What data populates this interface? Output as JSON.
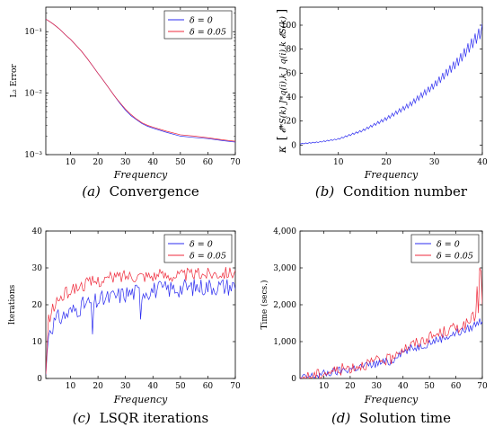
{
  "colors": {
    "delta0": "#2b2bf0",
    "delta005": "#ef2a3b"
  },
  "chart_data": [
    {
      "id": "a",
      "type": "line",
      "caption_letter": "(a)",
      "caption_text": "Convergence",
      "xlabel": "Frequency",
      "ylabel": "L₂ Error",
      "xlim": [
        1,
        70
      ],
      "ylim": [
        0.001,
        0.25
      ],
      "yscale": "log",
      "xticks": [
        10,
        20,
        30,
        40,
        50,
        60,
        70
      ],
      "yticks": [
        0.001,
        0.01,
        0.1
      ],
      "ytick_labels": [
        "10⁻³",
        "10⁻²",
        "10⁻¹"
      ],
      "grid": false,
      "legend": "top-right",
      "series": [
        {
          "name": "δ = 0",
          "x": [
            1,
            2,
            3,
            4,
            5,
            6,
            7,
            8,
            9,
            10,
            12,
            14,
            16,
            18,
            20,
            22,
            24,
            26,
            28,
            30,
            32,
            34,
            36,
            38,
            40,
            45,
            50,
            55,
            60,
            65,
            70
          ],
          "y": [
            0.16,
            0.15,
            0.14,
            0.13,
            0.12,
            0.11,
            0.1,
            0.09,
            0.082,
            0.075,
            0.06,
            0.048,
            0.037,
            0.028,
            0.021,
            0.016,
            0.012,
            0.009,
            0.0068,
            0.0053,
            0.0043,
            0.0037,
            0.0032,
            0.0029,
            0.0027,
            0.0023,
            0.002,
            0.0019,
            0.00182,
            0.0017,
            0.0016
          ]
        },
        {
          "name": "δ = 0.05",
          "x": [
            1,
            2,
            3,
            4,
            5,
            6,
            7,
            8,
            9,
            10,
            12,
            14,
            16,
            18,
            20,
            22,
            24,
            26,
            28,
            30,
            32,
            34,
            36,
            38,
            40,
            45,
            50,
            55,
            60,
            65,
            70
          ],
          "y": [
            0.16,
            0.15,
            0.14,
            0.13,
            0.12,
            0.11,
            0.1,
            0.09,
            0.082,
            0.075,
            0.06,
            0.048,
            0.037,
            0.028,
            0.021,
            0.016,
            0.012,
            0.009,
            0.007,
            0.0055,
            0.0045,
            0.0038,
            0.0033,
            0.003,
            0.0028,
            0.0024,
            0.0021,
            0.002,
            0.00188,
            0.00175,
            0.00165
          ]
        }
      ]
    },
    {
      "id": "b",
      "type": "line",
      "caption_letter": "(b)",
      "caption_text": "Condition number",
      "xlabel": "Frequency",
      "ylabel_main": "κ",
      "ylabel_inner": "𝓔*S(k) J*q(i),k J q(i),k 𝓔S(k)",
      "xlim": [
        2,
        40
      ],
      "ylim": [
        -8,
        115
      ],
      "xticks": [
        10,
        20,
        30,
        40
      ],
      "yticks": [
        0,
        20,
        40,
        60,
        80,
        100
      ],
      "grid": false,
      "legend": "none",
      "series": [
        {
          "x_start": 2,
          "x_end": 40,
          "step": 0.25,
          "base": [
            [
              2,
              1
            ],
            [
              6,
              2.5
            ],
            [
              10,
              5
            ],
            [
              15,
              12
            ],
            [
              20,
              22
            ],
            [
              25,
              34
            ],
            [
              30,
              50
            ],
            [
              35,
              70
            ],
            [
              40,
              96
            ]
          ],
          "oscillation": {
            "period": 0.75,
            "amplitude_fraction": 0.06
          }
        }
      ]
    },
    {
      "id": "c",
      "type": "line",
      "caption_letter": "(c)",
      "caption_text": "LSQR iterations",
      "xlabel": "Frequency",
      "ylabel": "Iterations",
      "xlim": [
        1,
        70
      ],
      "ylim": [
        0,
        40
      ],
      "xticks": [
        10,
        20,
        30,
        40,
        50,
        60,
        70
      ],
      "yticks": [
        0,
        10,
        20,
        30,
        40
      ],
      "grid": false,
      "legend": "top-right",
      "series": [
        {
          "name": "δ = 0",
          "x_start": 1,
          "x_end": 70,
          "step": 0.5,
          "base": [
            [
              1,
              1
            ],
            [
              2,
              13
            ],
            [
              5,
              16
            ],
            [
              10,
              18
            ],
            [
              15,
              20
            ],
            [
              20,
              21
            ],
            [
              30,
              23
            ],
            [
              40,
              24
            ],
            [
              50,
              24.5
            ],
            [
              60,
              25
            ],
            [
              70,
              25
            ]
          ],
          "noise": 2.5,
          "dips": [
            [
              18,
              12
            ],
            [
              35.5,
              16
            ]
          ]
        },
        {
          "name": "δ = 0.05",
          "x_start": 1,
          "x_end": 70,
          "step": 0.5,
          "base": [
            [
              1,
              1
            ],
            [
              2,
              16
            ],
            [
              5,
              21
            ],
            [
              10,
              24
            ],
            [
              15,
              25.5
            ],
            [
              20,
              26.5
            ],
            [
              30,
              28
            ],
            [
              40,
              28
            ],
            [
              50,
              28
            ],
            [
              60,
              28.5
            ],
            [
              70,
              29
            ]
          ],
          "noise": 1.8,
          "dips": []
        }
      ]
    },
    {
      "id": "d",
      "type": "line",
      "caption_letter": "(d)",
      "caption_text": "Solution time",
      "xlabel": "Frequency",
      "ylabel": "Time (secs.)",
      "xlim": [
        1,
        70
      ],
      "ylim": [
        0,
        4000
      ],
      "xticks": [
        10,
        20,
        30,
        40,
        50,
        60,
        70
      ],
      "yticks": [
        0,
        1000,
        2000,
        3000,
        4000
      ],
      "ytick_labels": [
        "0",
        "1,000",
        "2,000",
        "3,000",
        "4,000"
      ],
      "grid": false,
      "legend": "top-right",
      "series": [
        {
          "name": "δ = 0",
          "x_start": 1,
          "x_end": 70,
          "step": 0.5,
          "base": [
            [
              1,
              0
            ],
            [
              10,
              120
            ],
            [
              20,
              260
            ],
            [
              30,
              400
            ],
            [
              36.5,
              470
            ],
            [
              37,
              640
            ],
            [
              45,
              850
            ],
            [
              55,
              1100
            ],
            [
              65,
              1350
            ],
            [
              70,
              1600
            ]
          ],
          "noise": 120
        },
        {
          "name": "δ = 0.05",
          "x_start": 1,
          "x_end": 70,
          "step": 0.5,
          "base": [
            [
              1,
              0
            ],
            [
              10,
              150
            ],
            [
              20,
              300
            ],
            [
              30,
              460
            ],
            [
              36.5,
              530
            ],
            [
              37,
              720
            ],
            [
              45,
              960
            ],
            [
              55,
              1250
            ],
            [
              65,
              1500
            ],
            [
              70,
              2000
            ]
          ],
          "noise": 160,
          "spikes": [
            [
              69,
              3000
            ],
            [
              69.5,
              2900
            ],
            [
              68,
              2500
            ]
          ]
        }
      ]
    }
  ]
}
